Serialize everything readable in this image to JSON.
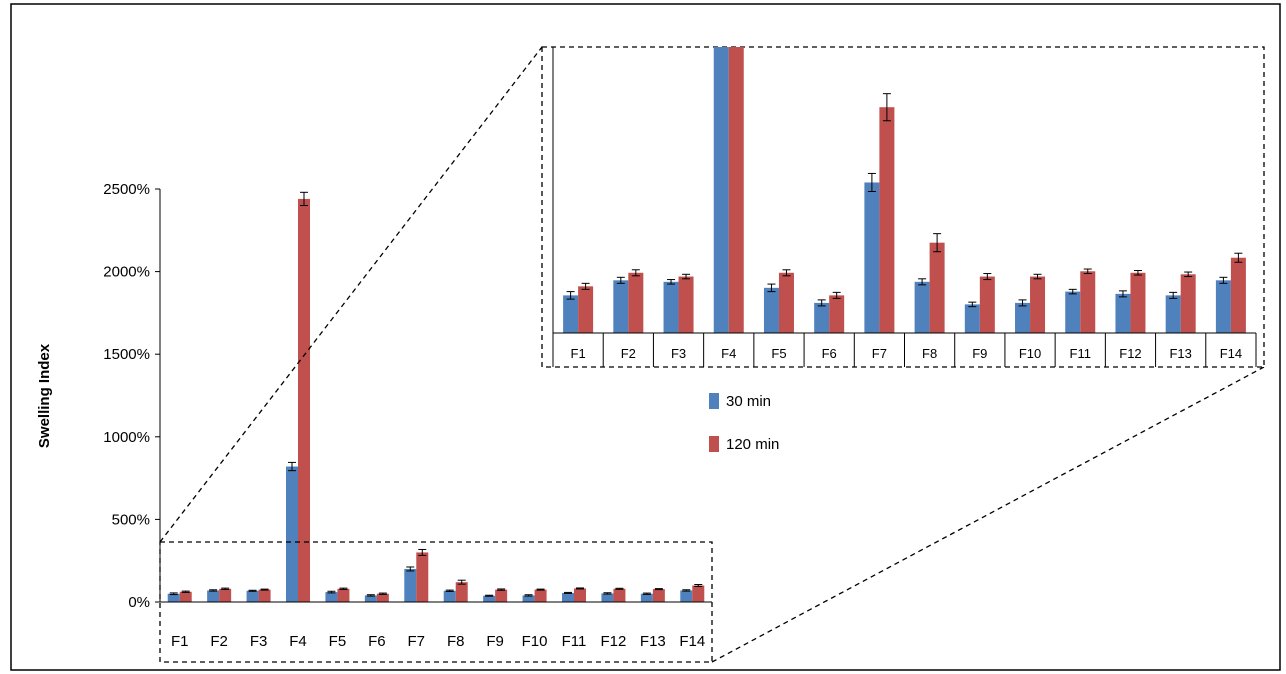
{
  "colors": {
    "series_30": "#4f81bd",
    "series_120": "#c0504d",
    "frame": "#000000",
    "grid": "#000000"
  },
  "chart_data": [
    {
      "type": "bar",
      "role": "main",
      "title": "",
      "xlabel": "",
      "ylabel": "Swelling Index",
      "ylim": [
        0,
        2500
      ],
      "y_ticks": [
        0,
        500,
        1000,
        1500,
        2000,
        2500
      ],
      "y_tick_labels": [
        "0%",
        "500%",
        "1000%",
        "1500%",
        "2000%",
        "2500%"
      ],
      "y_unit": "%",
      "grid": false,
      "categories": [
        "F1",
        "F2",
        "F3",
        "F4",
        "F5",
        "F6",
        "F7",
        "F8",
        "F9",
        "F10",
        "F11",
        "F12",
        "F13",
        "F14"
      ],
      "series": [
        {
          "name": "30 min",
          "color": "#4f81bd",
          "values": [
            50,
            70,
            68,
            820,
            60,
            40,
            200,
            68,
            38,
            40,
            55,
            52,
            50,
            70
          ],
          "errors": [
            5,
            4,
            3,
            25,
            5,
            4,
            12,
            4,
            3,
            4,
            3,
            4,
            4,
            4
          ]
        },
        {
          "name": "120 min",
          "color": "#c0504d",
          "values": [
            62,
            80,
            75,
            2440,
            80,
            50,
            300,
            120,
            75,
            75,
            82,
            80,
            78,
            100
          ],
          "errors": [
            4,
            4,
            3,
            40,
            4,
            4,
            18,
            12,
            4,
            3,
            3,
            3,
            3,
            6
          ]
        }
      ],
      "legend": {
        "position": "right",
        "entries": [
          "30 min",
          "120 min"
        ]
      }
    },
    {
      "type": "bar",
      "role": "zoom-inset",
      "title": "",
      "ylim": [
        0,
        380
      ],
      "grid": false,
      "categories": [
        "F1",
        "F2",
        "F3",
        "F4",
        "F5",
        "F6",
        "F7",
        "F8",
        "F9",
        "F10",
        "F11",
        "F12",
        "F13",
        "F14"
      ],
      "series_ref": "main"
    }
  ]
}
